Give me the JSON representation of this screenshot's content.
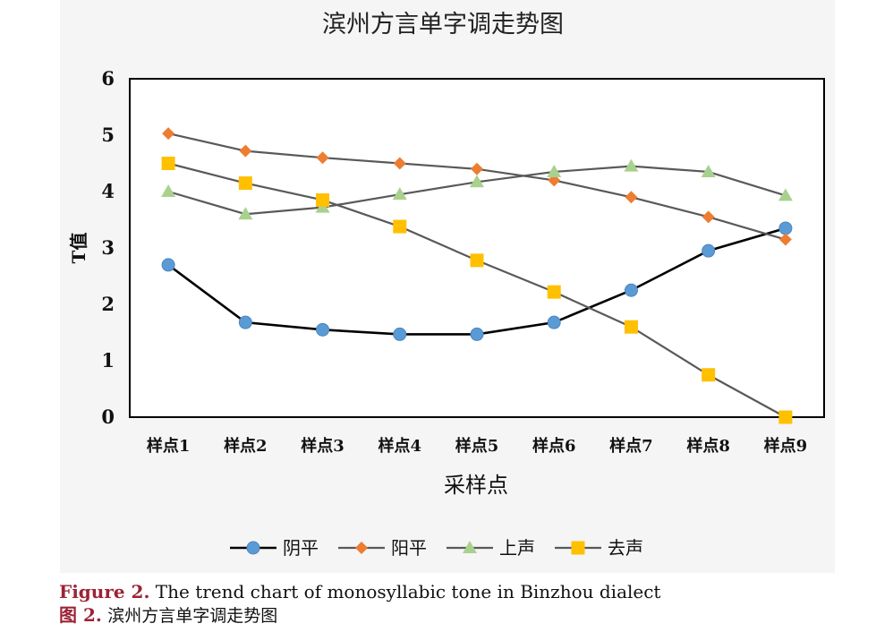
{
  "chart_data": {
    "type": "line",
    "title": "滨州方言单字调走势图",
    "xlabel": "采样点",
    "ylabel": "T值",
    "categories": [
      "样点1",
      "样点2",
      "样点3",
      "样点4",
      "样点5",
      "样点6",
      "样点7",
      "样点8",
      "样点9"
    ],
    "ylim": [
      0,
      6
    ],
    "yticks": [
      "0",
      "1",
      "2",
      "3",
      "4",
      "5",
      "6"
    ],
    "grid": false,
    "legend_position": "bottom",
    "series": [
      {
        "name": "阴平",
        "marker": "circle",
        "marker_color": "#5b9bd5",
        "line_color": "#000000",
        "values": [
          2.7,
          1.68,
          1.55,
          1.47,
          1.47,
          1.68,
          2.25,
          2.95,
          3.35
        ]
      },
      {
        "name": "阳平",
        "marker": "diamond",
        "marker_color": "#ed7d31",
        "line_color": "#595959",
        "values": [
          5.03,
          4.72,
          4.6,
          4.5,
          4.4,
          4.2,
          3.9,
          3.55,
          3.15
        ]
      },
      {
        "name": "上声",
        "marker": "triangle",
        "marker_color": "#a9d18e",
        "line_color": "#595959",
        "values": [
          4.0,
          3.6,
          3.72,
          3.95,
          4.17,
          4.35,
          4.45,
          4.35,
          3.93
        ]
      },
      {
        "name": "去声",
        "marker": "square",
        "marker_color": "#ffc000",
        "line_color": "#595959",
        "values": [
          4.5,
          4.15,
          3.85,
          3.38,
          2.78,
          2.22,
          1.6,
          0.75,
          0.0
        ]
      }
    ]
  },
  "caption": {
    "label_en": "Figure 2.",
    "text_en": "The trend chart of monosyllabic tone in Binzhou dialect",
    "label_zh": "图 2.",
    "text_zh": "滨州方言单字调走势图"
  }
}
